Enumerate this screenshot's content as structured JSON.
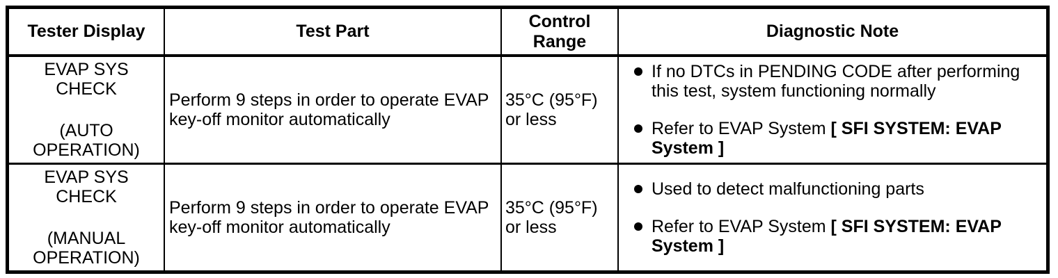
{
  "colors": {
    "border": "#000000",
    "text": "#000000",
    "background": "#ffffff"
  },
  "table": {
    "headers": {
      "tester_display": "Tester Display",
      "test_part": "Test Part",
      "control_range": "Control Range",
      "diagnostic_note": "Diagnostic Note"
    },
    "rows": [
      {
        "tester_display_title": "EVAP SYS CHECK",
        "tester_display_mode": "(AUTO OPERATION)",
        "test_part": "Perform 9 steps in order to operate EVAP key-off monitor automatically",
        "control_range": "35°C (95°F) or less",
        "notes": [
          {
            "text": "If no DTCs in PENDING CODE after performing this test, system functioning normally",
            "bold": ""
          },
          {
            "text": "Refer to EVAP System ",
            "bold": "[ SFI SYSTEM: EVAP System ]"
          }
        ]
      },
      {
        "tester_display_title": "EVAP SYS CHECK",
        "tester_display_mode": "(MANUAL OPERATION)",
        "test_part": "Perform 9 steps in order to operate EVAP key-off monitor automatically",
        "control_range": "35°C (95°F) or less",
        "notes": [
          {
            "text": "Used to detect malfunctioning parts",
            "bold": ""
          },
          {
            "text": "Refer to EVAP System ",
            "bold": "[ SFI SYSTEM: EVAP System ]"
          }
        ]
      }
    ]
  }
}
